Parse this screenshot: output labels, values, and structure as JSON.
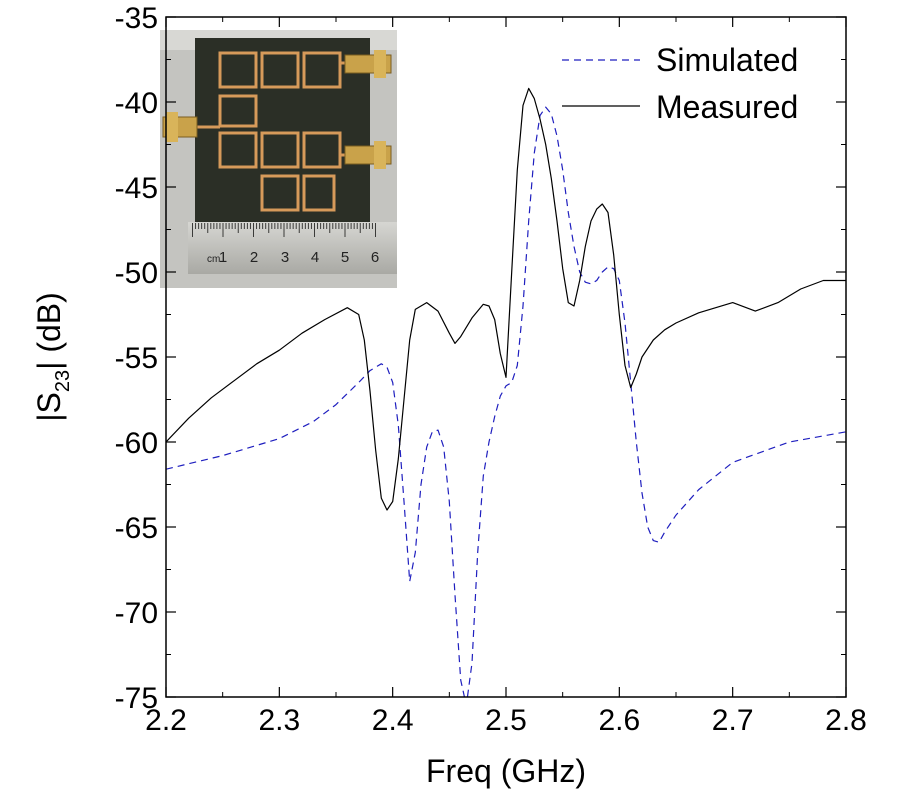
{
  "chart_data": {
    "type": "line",
    "xlabel": "Freq (GHz)",
    "ylabel_parts": {
      "prefix": "|S",
      "subscript": "23",
      "suffix": "| (dB)"
    },
    "xlim": [
      2.2,
      2.8
    ],
    "ylim": [
      -75,
      -35
    ],
    "xticks": [
      "2.2",
      "2.3",
      "2.4",
      "2.5",
      "2.6",
      "2.7",
      "2.8"
    ],
    "yticks": [
      "-35",
      "-40",
      "-45",
      "-50",
      "-55",
      "-60",
      "-65",
      "-70",
      "-75"
    ],
    "grid": false,
    "legend_position": "top-right",
    "inset": "photo of fabricated microstrip filter with SMA connectors and a ruler",
    "inset_ruler_labels": [
      "cm",
      "1",
      "2",
      "3",
      "4",
      "5",
      "6"
    ],
    "series": [
      {
        "name": "Simulated",
        "style": "dashed",
        "color": "#1f1fbf",
        "x": [
          2.2,
          2.25,
          2.3,
          2.33,
          2.35,
          2.37,
          2.38,
          2.39,
          2.395,
          2.4,
          2.405,
          2.41,
          2.415,
          2.42,
          2.425,
          2.43,
          2.435,
          2.44,
          2.445,
          2.45,
          2.455,
          2.46,
          2.465,
          2.47,
          2.475,
          2.48,
          2.485,
          2.49,
          2.495,
          2.5,
          2.505,
          2.51,
          2.515,
          2.52,
          2.525,
          2.53,
          2.535,
          2.54,
          2.545,
          2.55,
          2.555,
          2.56,
          2.565,
          2.57,
          2.575,
          2.58,
          2.585,
          2.59,
          2.595,
          2.6,
          2.605,
          2.61,
          2.615,
          2.62,
          2.625,
          2.63,
          2.635,
          2.64,
          2.65,
          2.67,
          2.7,
          2.75,
          2.8
        ],
        "y": [
          -61.6,
          -60.8,
          -59.8,
          -58.8,
          -57.8,
          -56.5,
          -55.8,
          -55.4,
          -55.6,
          -56.5,
          -59.0,
          -63.5,
          -68.2,
          -66.5,
          -62.5,
          -60.3,
          -59.4,
          -59.3,
          -60.3,
          -63.5,
          -69.0,
          -74.0,
          -75.5,
          -73.0,
          -66.5,
          -62.0,
          -60.0,
          -58.5,
          -57.3,
          -56.7,
          -56.5,
          -55.5,
          -52.0,
          -47.0,
          -43.0,
          -40.8,
          -40.3,
          -40.7,
          -42.0,
          -44.0,
          -46.5,
          -48.5,
          -50.0,
          -50.6,
          -50.7,
          -50.5,
          -50.0,
          -49.7,
          -49.8,
          -50.5,
          -53.0,
          -56.5,
          -60.0,
          -63.0,
          -65.0,
          -65.8,
          -65.9,
          -65.3,
          -64.3,
          -62.8,
          -61.2,
          -60.0,
          -59.4
        ]
      },
      {
        "name": "Measured",
        "style": "solid",
        "color": "#000000",
        "x": [
          2.2,
          2.22,
          2.24,
          2.26,
          2.28,
          2.3,
          2.32,
          2.34,
          2.36,
          2.37,
          2.375,
          2.38,
          2.385,
          2.39,
          2.395,
          2.4,
          2.405,
          2.41,
          2.415,
          2.42,
          2.43,
          2.44,
          2.45,
          2.455,
          2.46,
          2.47,
          2.48,
          2.485,
          2.49,
          2.495,
          2.5,
          2.505,
          2.51,
          2.515,
          2.52,
          2.525,
          2.53,
          2.535,
          2.54,
          2.545,
          2.55,
          2.555,
          2.56,
          2.565,
          2.57,
          2.575,
          2.58,
          2.585,
          2.59,
          2.595,
          2.6,
          2.605,
          2.61,
          2.615,
          2.62,
          2.63,
          2.64,
          2.65,
          2.67,
          2.7,
          2.72,
          2.74,
          2.76,
          2.78,
          2.8
        ],
        "y": [
          -60.0,
          -58.6,
          -57.4,
          -56.4,
          -55.4,
          -54.6,
          -53.6,
          -52.8,
          -52.1,
          -52.5,
          -54.0,
          -57.0,
          -60.5,
          -63.3,
          -64.0,
          -63.5,
          -61.0,
          -57.5,
          -54.0,
          -52.2,
          -51.8,
          -52.3,
          -53.6,
          -54.2,
          -53.8,
          -52.7,
          -51.9,
          -52.0,
          -52.8,
          -54.8,
          -56.2,
          -50.0,
          -44.0,
          -40.2,
          -39.2,
          -39.8,
          -41.0,
          -42.5,
          -44.5,
          -47.0,
          -49.8,
          -51.8,
          -52.0,
          -50.5,
          -48.5,
          -47.0,
          -46.3,
          -46.0,
          -46.5,
          -49.0,
          -52.5,
          -55.5,
          -56.8,
          -56.0,
          -55.0,
          -54.0,
          -53.4,
          -53.0,
          -52.4,
          -51.8,
          -52.3,
          -51.8,
          -51.0,
          -50.5,
          -50.5
        ]
      }
    ]
  }
}
